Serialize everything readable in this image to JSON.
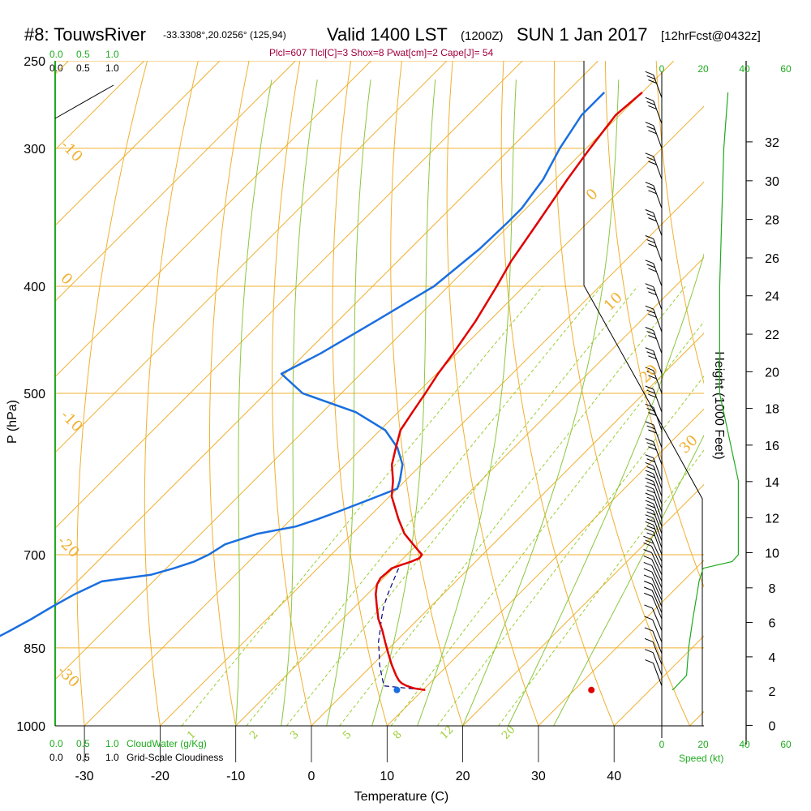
{
  "header": {
    "station": "#8: TouwsRiver",
    "coords": "-33.3308°,20.0256° (125,94)",
    "valid": "Valid 1400 LST",
    "utc": "(1200Z)",
    "date": "SUN 1 Jan 2017",
    "forecast": "[12hrFcst@0432z]"
  },
  "indices_line": "Plcl=607 Tlcl[C]=3 Shox=8 Pwat[cm]=2 Cape[J]= 54",
  "colors": {
    "temperature": "#e00000",
    "dewpoint": "#1a6fe0",
    "parcel": "#000080",
    "isobar_isotherm": "#f0b030",
    "dry_adiabat": "#f0b030",
    "moist_adiabat": "#8cc63f",
    "mixing_ratio": "#9acd32",
    "green_text": "#1faa1f",
    "title": "#000000",
    "indices": "#a0003a"
  },
  "chart_data": {
    "type": "line",
    "subtype": "skew-T log-P sounding",
    "xlabel": "Temperature (C)",
    "ylabel": "P (hPa)",
    "right_axis_label": "Height (1000 Feet)",
    "x_ticks": [
      "-30",
      "-20",
      "-10",
      "0",
      "10",
      "20",
      "30",
      "40"
    ],
    "x_tick_values": [
      -30,
      -20,
      -10,
      0,
      10,
      20,
      30,
      40
    ],
    "pressure_ticks": [
      "250",
      "300",
      "400",
      "500",
      "700",
      "850",
      "1000"
    ],
    "pressure_tick_values": [
      250,
      300,
      400,
      500,
      700,
      850,
      1000
    ],
    "height_ticks": [
      "0",
      "2",
      "4",
      "6",
      "8",
      "10",
      "12",
      "14",
      "16",
      "18",
      "20",
      "22",
      "24",
      "26",
      "28",
      "30",
      "32"
    ],
    "height_tick_values": [
      0,
      2,
      4,
      6,
      8,
      10,
      12,
      14,
      16,
      18,
      20,
      22,
      24,
      26,
      28,
      30,
      32
    ],
    "height_tick_pressures": [
      999,
      930,
      866,
      806,
      750,
      697,
      648,
      601,
      557,
      516,
      478,
      442,
      408,
      377,
      348,
      321,
      296
    ],
    "dry_adiabat_labels": [
      "-10",
      "0",
      "10",
      "20",
      "30",
      "0",
      "-10",
      "-20",
      "-30"
    ],
    "mixing_ratio_labels": [
      "1",
      "2",
      "3",
      "5",
      "8",
      "12",
      "20"
    ],
    "temperature": {
      "pressure": [
        267,
        280,
        300,
        320,
        350,
        380,
        400,
        430,
        460,
        480,
        500,
        520,
        540,
        560,
        580,
        600,
        620,
        650,
        670,
        690,
        700,
        705,
        710,
        715,
        720,
        728,
        735,
        745,
        760,
        780,
        800,
        820,
        840,
        860,
        880,
        900,
        910,
        915,
        920,
        925,
        928
      ],
      "values": [
        -40,
        -40.5,
        -39.5,
        -38.4,
        -36.6,
        -35,
        -33.6,
        -31.8,
        -30.5,
        -29.8,
        -28.9,
        -28.1,
        -27.3,
        -25.6,
        -23.9,
        -21.6,
        -19.7,
        -15.8,
        -13.1,
        -9.7,
        -8,
        -7.9,
        -8.5,
        -9.4,
        -10.2,
        -10.3,
        -10.4,
        -10.0,
        -8.9,
        -7.1,
        -5.3,
        -3.2,
        -1.3,
        0.6,
        2.5,
        4.5,
        5.6,
        6.3,
        7.3,
        8.7,
        10.3
      ]
    },
    "dewpoint": {
      "pressure": [
        267,
        280,
        300,
        320,
        340,
        350,
        370,
        400,
        430,
        460,
        480,
        500,
        520,
        540,
        560,
        580,
        600,
        610,
        625,
        640,
        650,
        660,
        670,
        685,
        700,
        710,
        720,
        730,
        740,
        760,
        780,
        800,
        820,
        840,
        860,
        880,
        900,
        920,
        925,
        928
      ],
      "values": [
        -45,
        -45,
        -43.5,
        -41.6,
        -40.6,
        -40.6,
        -40.8,
        -41.9,
        -45,
        -48,
        -50.5,
        -45.1,
        -35.6,
        -29.3,
        -25.4,
        -22.5,
        -20.7,
        -20,
        -22.4,
        -24.8,
        -26.5,
        -28.4,
        -32.5,
        -35.4,
        -36.2,
        -37.2,
        -39,
        -41.2,
        -46.8,
        -48.7,
        -50,
        -51.1,
        -52.4,
        -53.8,
        -55.3,
        -56.7,
        -58.8,
        -61.3,
        -62.1,
        -61
      ]
    },
    "parcel": {
      "pressure": [
        720,
        740,
        760,
        780,
        800,
        820,
        840,
        860,
        880,
        900,
        920,
        928
      ],
      "values": [
        -9.3,
        -8.3,
        -7.3,
        -6.2,
        -4.9,
        -3.5,
        -2.2,
        -0.6,
        0.9,
        2.6,
        4.3,
        10.3
      ]
    },
    "surface_dewpoint_marker": {
      "pressure": 928,
      "value": 11.3
    },
    "surface_temperature_marker": {
      "pressure": 928,
      "value": 37
    },
    "wind_speed_axis_ticks": [
      "0",
      "20",
      "40",
      "60"
    ],
    "wind_speed_axis_ticks_bottom": [
      "0",
      "20",
      "40",
      "60"
    ],
    "wind_speed_label": "Speed (kt)",
    "wind_speed_profile": {
      "pressure": [
        267,
        300,
        400,
        500,
        600,
        650,
        700,
        710,
        720,
        740,
        760,
        800,
        850,
        900,
        925,
        928
      ],
      "values_kt": [
        32,
        30,
        28,
        28,
        37,
        37,
        37,
        34,
        20,
        18,
        17,
        15,
        13,
        12,
        6,
        5
      ]
    },
    "wind_barb_pressures": [
      270,
      285,
      300,
      320,
      340,
      360,
      380,
      400,
      420,
      440,
      460,
      480,
      500,
      520,
      540,
      560,
      580,
      600,
      610,
      620,
      630,
      640,
      650,
      660,
      670,
      680,
      690,
      700,
      710,
      720,
      730,
      740,
      750,
      760,
      770,
      780,
      790,
      800,
      820,
      840,
      860,
      880,
      900,
      920
    ]
  },
  "top_scales": {
    "row1": [
      "0.0",
      "0.5",
      "1.0"
    ],
    "row2": [
      "0.0",
      "0.5",
      "1.0"
    ]
  },
  "bottom_scales": {
    "cloudwater_ticks": [
      "0.0",
      "0.5",
      "1.0"
    ],
    "cloudwater_label": "CloudWater (g/Kg)",
    "cloudiness_ticks": [
      "0.0",
      "0.5",
      "1.0"
    ],
    "cloudiness_label": "Grid-Scale Cloudiness"
  }
}
